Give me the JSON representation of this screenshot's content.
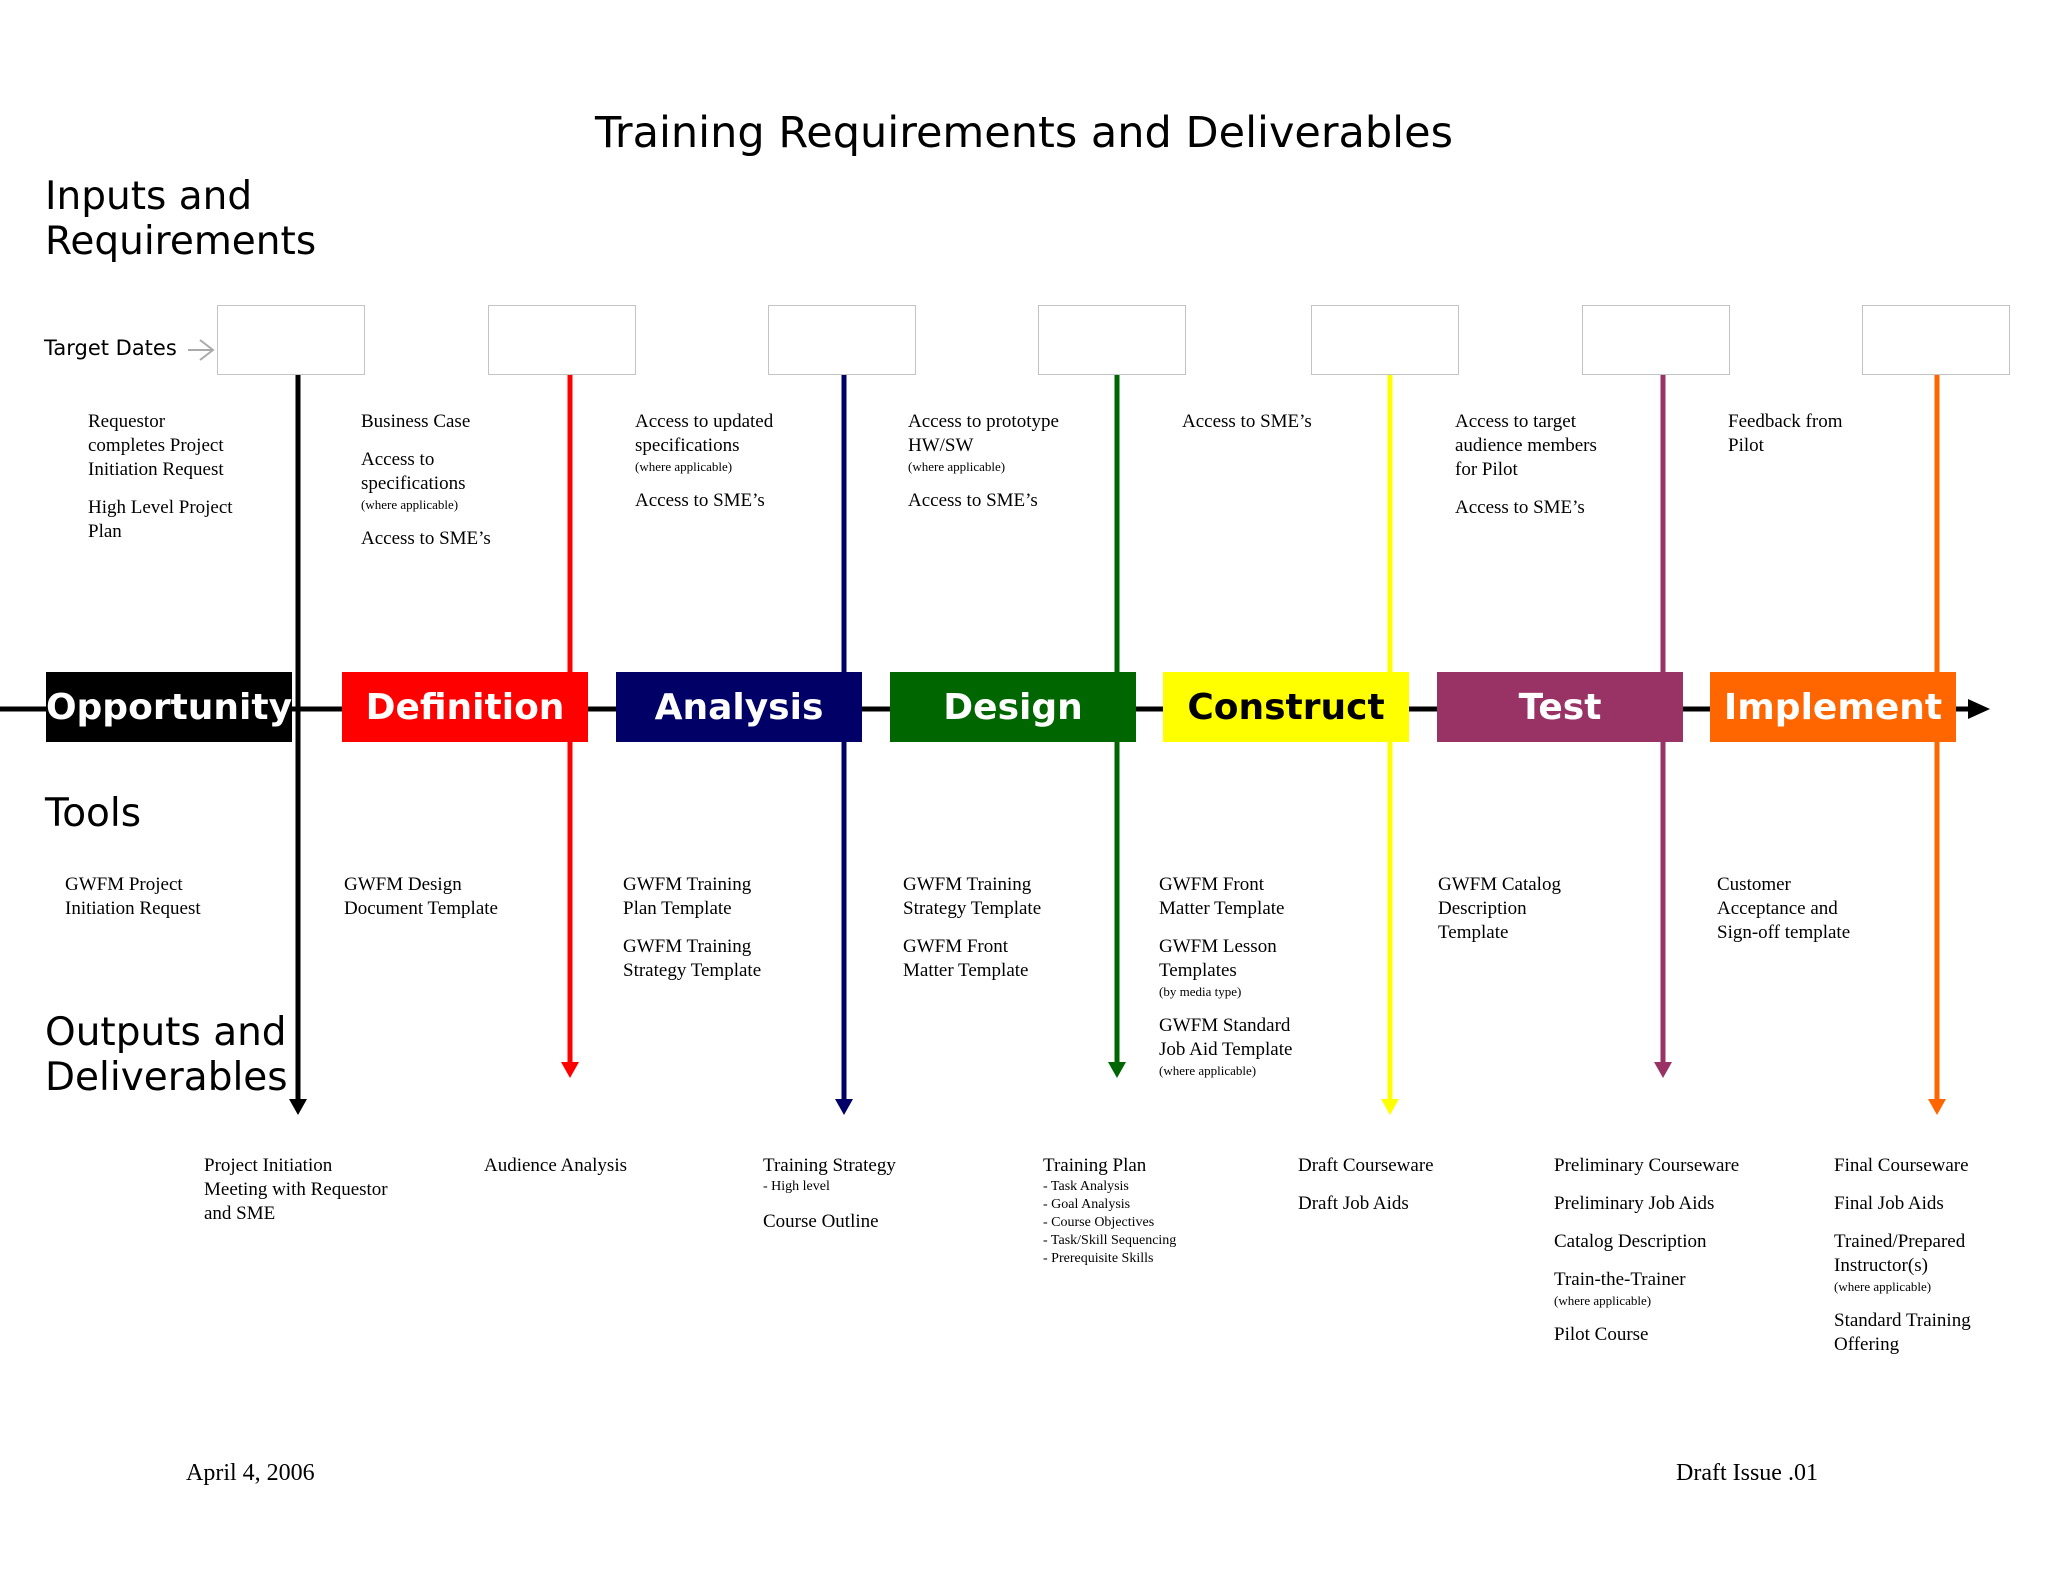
{
  "title": "Training Requirements and Deliverables",
  "sections": {
    "inputs": "Inputs and\nRequirements",
    "tools": "Tools",
    "outputs": "Outputs and\nDeliverables"
  },
  "target_dates_label": "Target Dates",
  "stages": [
    {
      "name": "Opportunity",
      "color": "#000000",
      "text_color": "#ffffff"
    },
    {
      "name": "Definition",
      "color": "#ff0000",
      "text_color": "#ffffff"
    },
    {
      "name": "Analysis",
      "color": "#000066",
      "text_color": "#ffffff"
    },
    {
      "name": "Design",
      "color": "#006600",
      "text_color": "#ffffff"
    },
    {
      "name": "Construct",
      "color": "#ffff00",
      "text_color": "#000000"
    },
    {
      "name": "Test",
      "color": "#993366",
      "text_color": "#ffffff"
    },
    {
      "name": "Implement",
      "color": "#ff6600",
      "text_color": "#ffffff"
    }
  ],
  "inputs": [
    {
      "items": [
        {
          "text": "Requestor\ncompletes Project\nInitiation Request"
        },
        {
          "text": "High Level Project\nPlan"
        }
      ]
    },
    {
      "items": [
        {
          "text": "Business Case"
        },
        {
          "text": "Access to\nspecifications",
          "note": "(where applicable)"
        },
        {
          "text": "Access to SME’s"
        }
      ]
    },
    {
      "items": [
        {
          "text": "Access to  updated\nspecifications",
          "note": "(where applicable)"
        },
        {
          "text": "Access to SME’s"
        }
      ]
    },
    {
      "items": [
        {
          "text": "Access to prototype\nHW/SW",
          "note": "(where applicable)"
        },
        {
          "text": "Access to SME’s"
        }
      ]
    },
    {
      "items": [
        {
          "text": "Access to SME’s"
        }
      ]
    },
    {
      "items": [
        {
          "text": "Access to target\naudience members\nfor Pilot"
        },
        {
          "text": "Access to SME’s"
        }
      ]
    },
    {
      "items": [
        {
          "text": "Feedback from\nPilot"
        }
      ]
    }
  ],
  "tools": [
    {
      "items": [
        {
          "text": "GWFM Project\nInitiation Request"
        }
      ]
    },
    {
      "items": [
        {
          "text": "GWFM Design\nDocument Template"
        }
      ]
    },
    {
      "items": [
        {
          "text": "GWFM Training\nPlan Template"
        },
        {
          "text": "GWFM Training\nStrategy Template"
        }
      ]
    },
    {
      "items": [
        {
          "text": "GWFM Training\nStrategy Template"
        },
        {
          "text": "GWFM Front\nMatter Template"
        }
      ]
    },
    {
      "items": [
        {
          "text": "GWFM Front\nMatter Template"
        },
        {
          "text": "GWFM Lesson\nTemplates",
          "note": "(by media type)"
        },
        {
          "text": "GWFM Standard\nJob Aid Template",
          "note": "(where applicable)"
        }
      ]
    },
    {
      "items": [
        {
          "text": "GWFM Catalog\nDescription\nTemplate"
        }
      ]
    },
    {
      "items": [
        {
          "text": "Customer\nAcceptance and\nSign-off  template"
        }
      ]
    }
  ],
  "outputs": [
    {
      "items": [
        {
          "text": "Project Initiation\nMeeting with Requestor\nand SME"
        }
      ]
    },
    {
      "items": [
        {
          "text": "Audience Analysis"
        }
      ]
    },
    {
      "items": [
        {
          "text": "Training Strategy",
          "sub": [
            "- High level"
          ]
        },
        {
          "text": "Course Outline"
        }
      ]
    },
    {
      "items": [
        {
          "text": "Training Plan",
          "sub": [
            "- Task Analysis",
            "- Goal Analysis",
            "- Course Objectives",
            "- Task/Skill Sequencing",
            "- Prerequisite Skills"
          ]
        }
      ]
    },
    {
      "items": [
        {
          "text": "Draft Courseware"
        },
        {
          "text": "Draft Job Aids"
        }
      ]
    },
    {
      "items": [
        {
          "text": "Preliminary Courseware"
        },
        {
          "text": "Preliminary Job Aids"
        },
        {
          "text": "Catalog Description"
        },
        {
          "text": "Train-the-Trainer",
          "note": "(where applicable)"
        },
        {
          "text": "Pilot Course"
        }
      ]
    },
    {
      "items": [
        {
          "text": "Final Courseware"
        },
        {
          "text": "Final Job Aids"
        },
        {
          "text": "Trained/Prepared\nInstructor(s)",
          "note": "(where applicable)"
        },
        {
          "text": "Standard Training\nOffering"
        }
      ]
    }
  ],
  "footer": {
    "date": "April 4, 2006",
    "issue": "Draft Issue .01"
  }
}
